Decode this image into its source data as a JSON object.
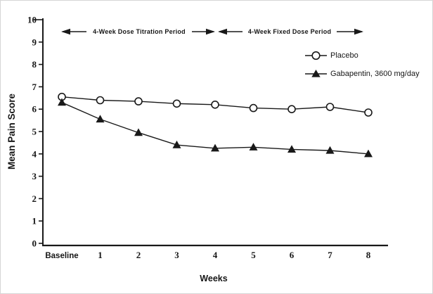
{
  "chart_data": {
    "type": "line",
    "title": "",
    "xlabel": "Weeks",
    "ylabel": "Mean Pain Score",
    "categories": [
      "Baseline",
      "1",
      "2",
      "3",
      "4",
      "5",
      "6",
      "7",
      "8"
    ],
    "series": [
      {
        "name": "Placebo",
        "marker": "open-circle",
        "color": "#191919",
        "values": [
          6.55,
          6.4,
          6.35,
          6.25,
          6.2,
          6.05,
          6.0,
          6.1,
          5.85
        ]
      },
      {
        "name": "Gabapentin, 3600 mg/day",
        "marker": "filled-triangle",
        "color": "#191919",
        "values": [
          6.3,
          5.55,
          4.95,
          4.4,
          4.25,
          4.3,
          4.2,
          4.15,
          4.0
        ]
      }
    ],
    "ylim": [
      0,
      10
    ],
    "yticks": [
      0,
      1,
      2,
      3,
      4,
      5,
      6,
      7,
      8,
      9,
      10
    ],
    "grid": false,
    "legend_position": "upper-right",
    "period_annotations": [
      "4-Week Dose Titration Period",
      "4-Week Fixed Dose Period"
    ]
  },
  "style": {
    "ink": "#191919",
    "background": "#ffffff"
  }
}
